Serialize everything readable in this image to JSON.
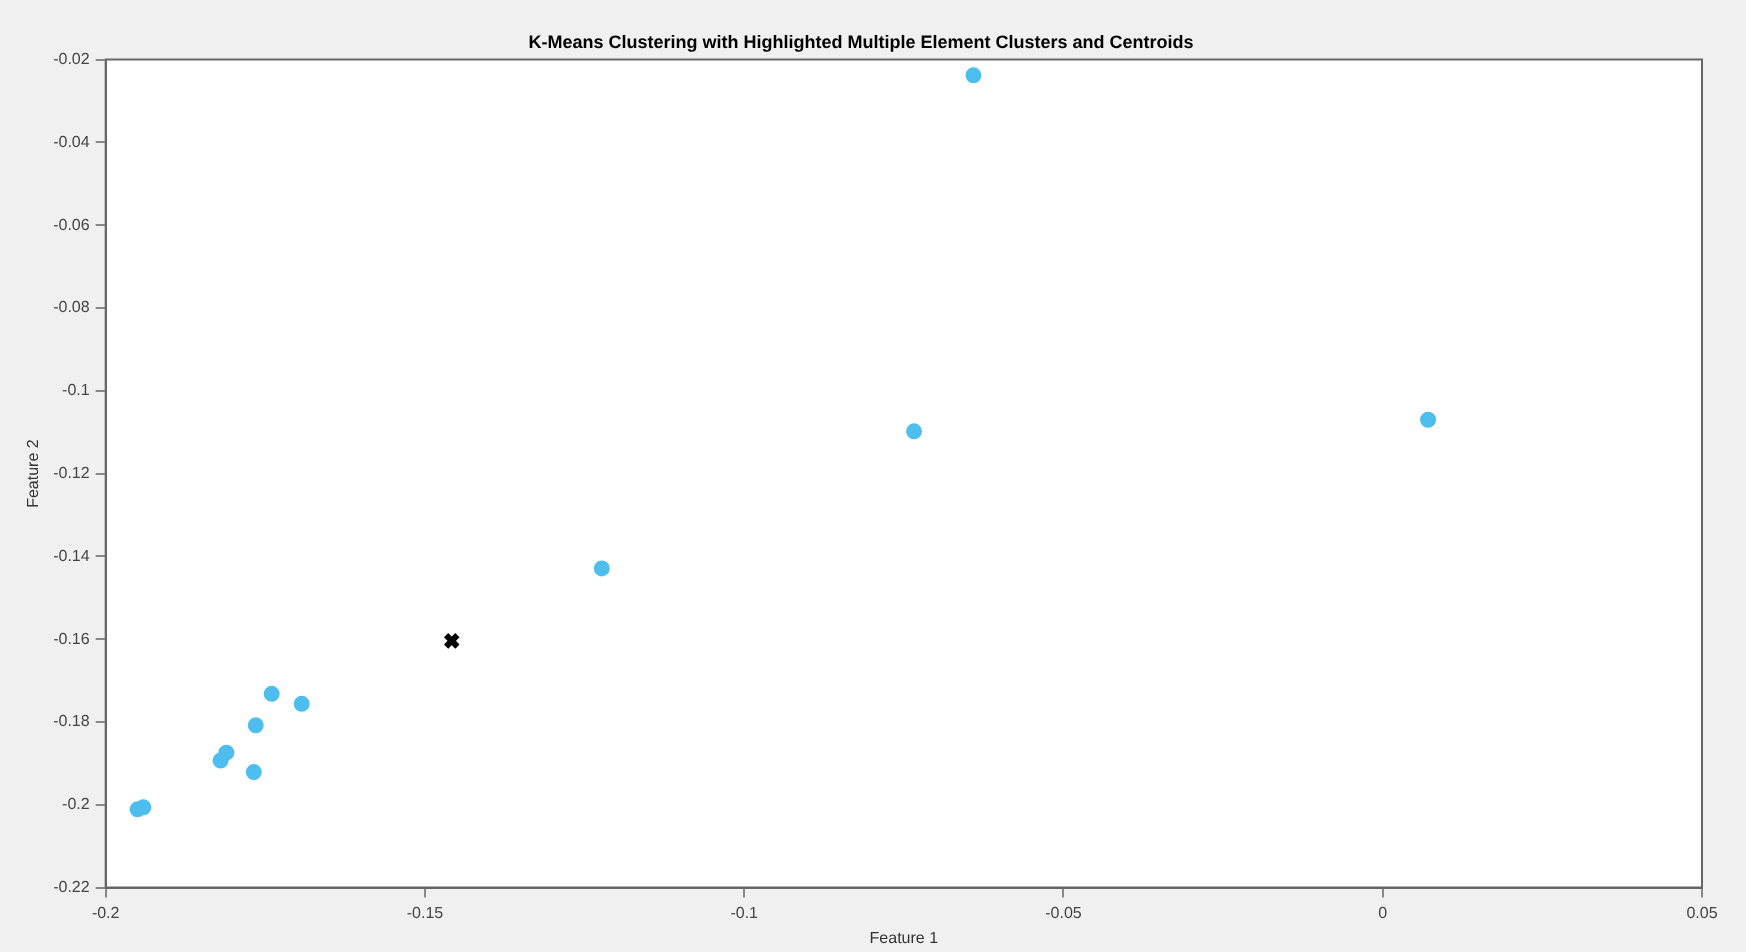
{
  "chart_data": {
    "type": "scatter",
    "title": "K-Means Clustering with Highlighted Multiple Element Clusters and Centroids",
    "xlabel": "Feature 1",
    "ylabel": "Feature 2",
    "xlim": [
      -0.2,
      0.05
    ],
    "xticks": [
      -0.2,
      -0.15,
      -0.1,
      -0.05,
      0,
      0.05
    ],
    "ylim": [
      -0.22,
      -0.02
    ],
    "yticks": [
      -0.22,
      -0.2,
      -0.18,
      -0.16,
      -0.14,
      -0.12,
      -0.1,
      -0.08,
      -0.06,
      -0.04,
      -0.02
    ],
    "grid": false,
    "legend": false,
    "series": [
      {
        "marker": "circle",
        "color": "#4dbeee",
        "x": [
          -0.0641,
          -0.0734,
          0.0071,
          -0.1223,
          -0.174,
          -0.1693,
          -0.1765,
          -0.1811,
          -0.182,
          -0.1768,
          -0.1941,
          -0.195
        ],
        "values": [
          -0.0238,
          -0.1098,
          -0.107,
          -0.1429,
          -0.1732,
          -0.1756,
          -0.1808,
          -0.1874,
          -0.1893,
          -0.1921,
          -0.2006,
          -0.2011
        ]
      },
      {
        "marker": "cross",
        "color": "#000000",
        "x": [
          -0.1458
        ],
        "values": [
          -0.1604
        ]
      }
    ]
  }
}
